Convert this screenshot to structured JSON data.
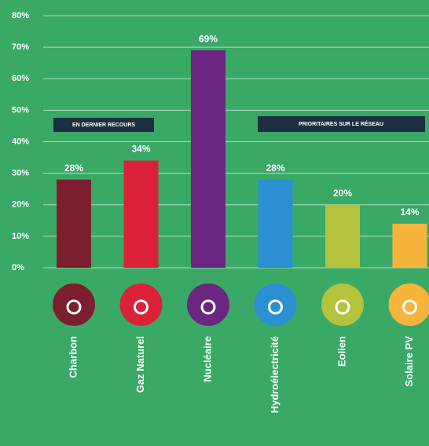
{
  "chart_data": {
    "type": "bar",
    "categories": [
      "Charbon",
      "Gaz Naturel",
      "Nucléaire",
      "Hydroélectricité",
      "Eolien",
      "Solaire PV"
    ],
    "values": [
      28,
      34,
      69,
      28,
      20,
      14
    ],
    "value_labels": [
      "28%",
      "34%",
      "69%",
      "28%",
      "20%",
      "14%"
    ],
    "colors": [
      "#7b1f2f",
      "#da2138",
      "#6a2680",
      "#2b8fd2",
      "#b4c33b",
      "#f7b43c"
    ],
    "ylim": [
      0,
      80
    ],
    "yticks": [
      {
        "value": 0,
        "label": "0%"
      },
      {
        "value": 10,
        "label": "10%"
      },
      {
        "value": 20,
        "label": "20%"
      },
      {
        "value": 30,
        "label": "30%"
      },
      {
        "value": 40,
        "label": "40%"
      },
      {
        "value": 50,
        "label": "50%"
      },
      {
        "value": 60,
        "label": "60%"
      },
      {
        "value": 70,
        "label": "70%"
      },
      {
        "value": 80,
        "label": "80%"
      }
    ],
    "grid": true,
    "annotations": [
      "EN DERNIER RECOURS",
      "PRIORITAIRES SUR LE RÉSEAU"
    ]
  }
}
